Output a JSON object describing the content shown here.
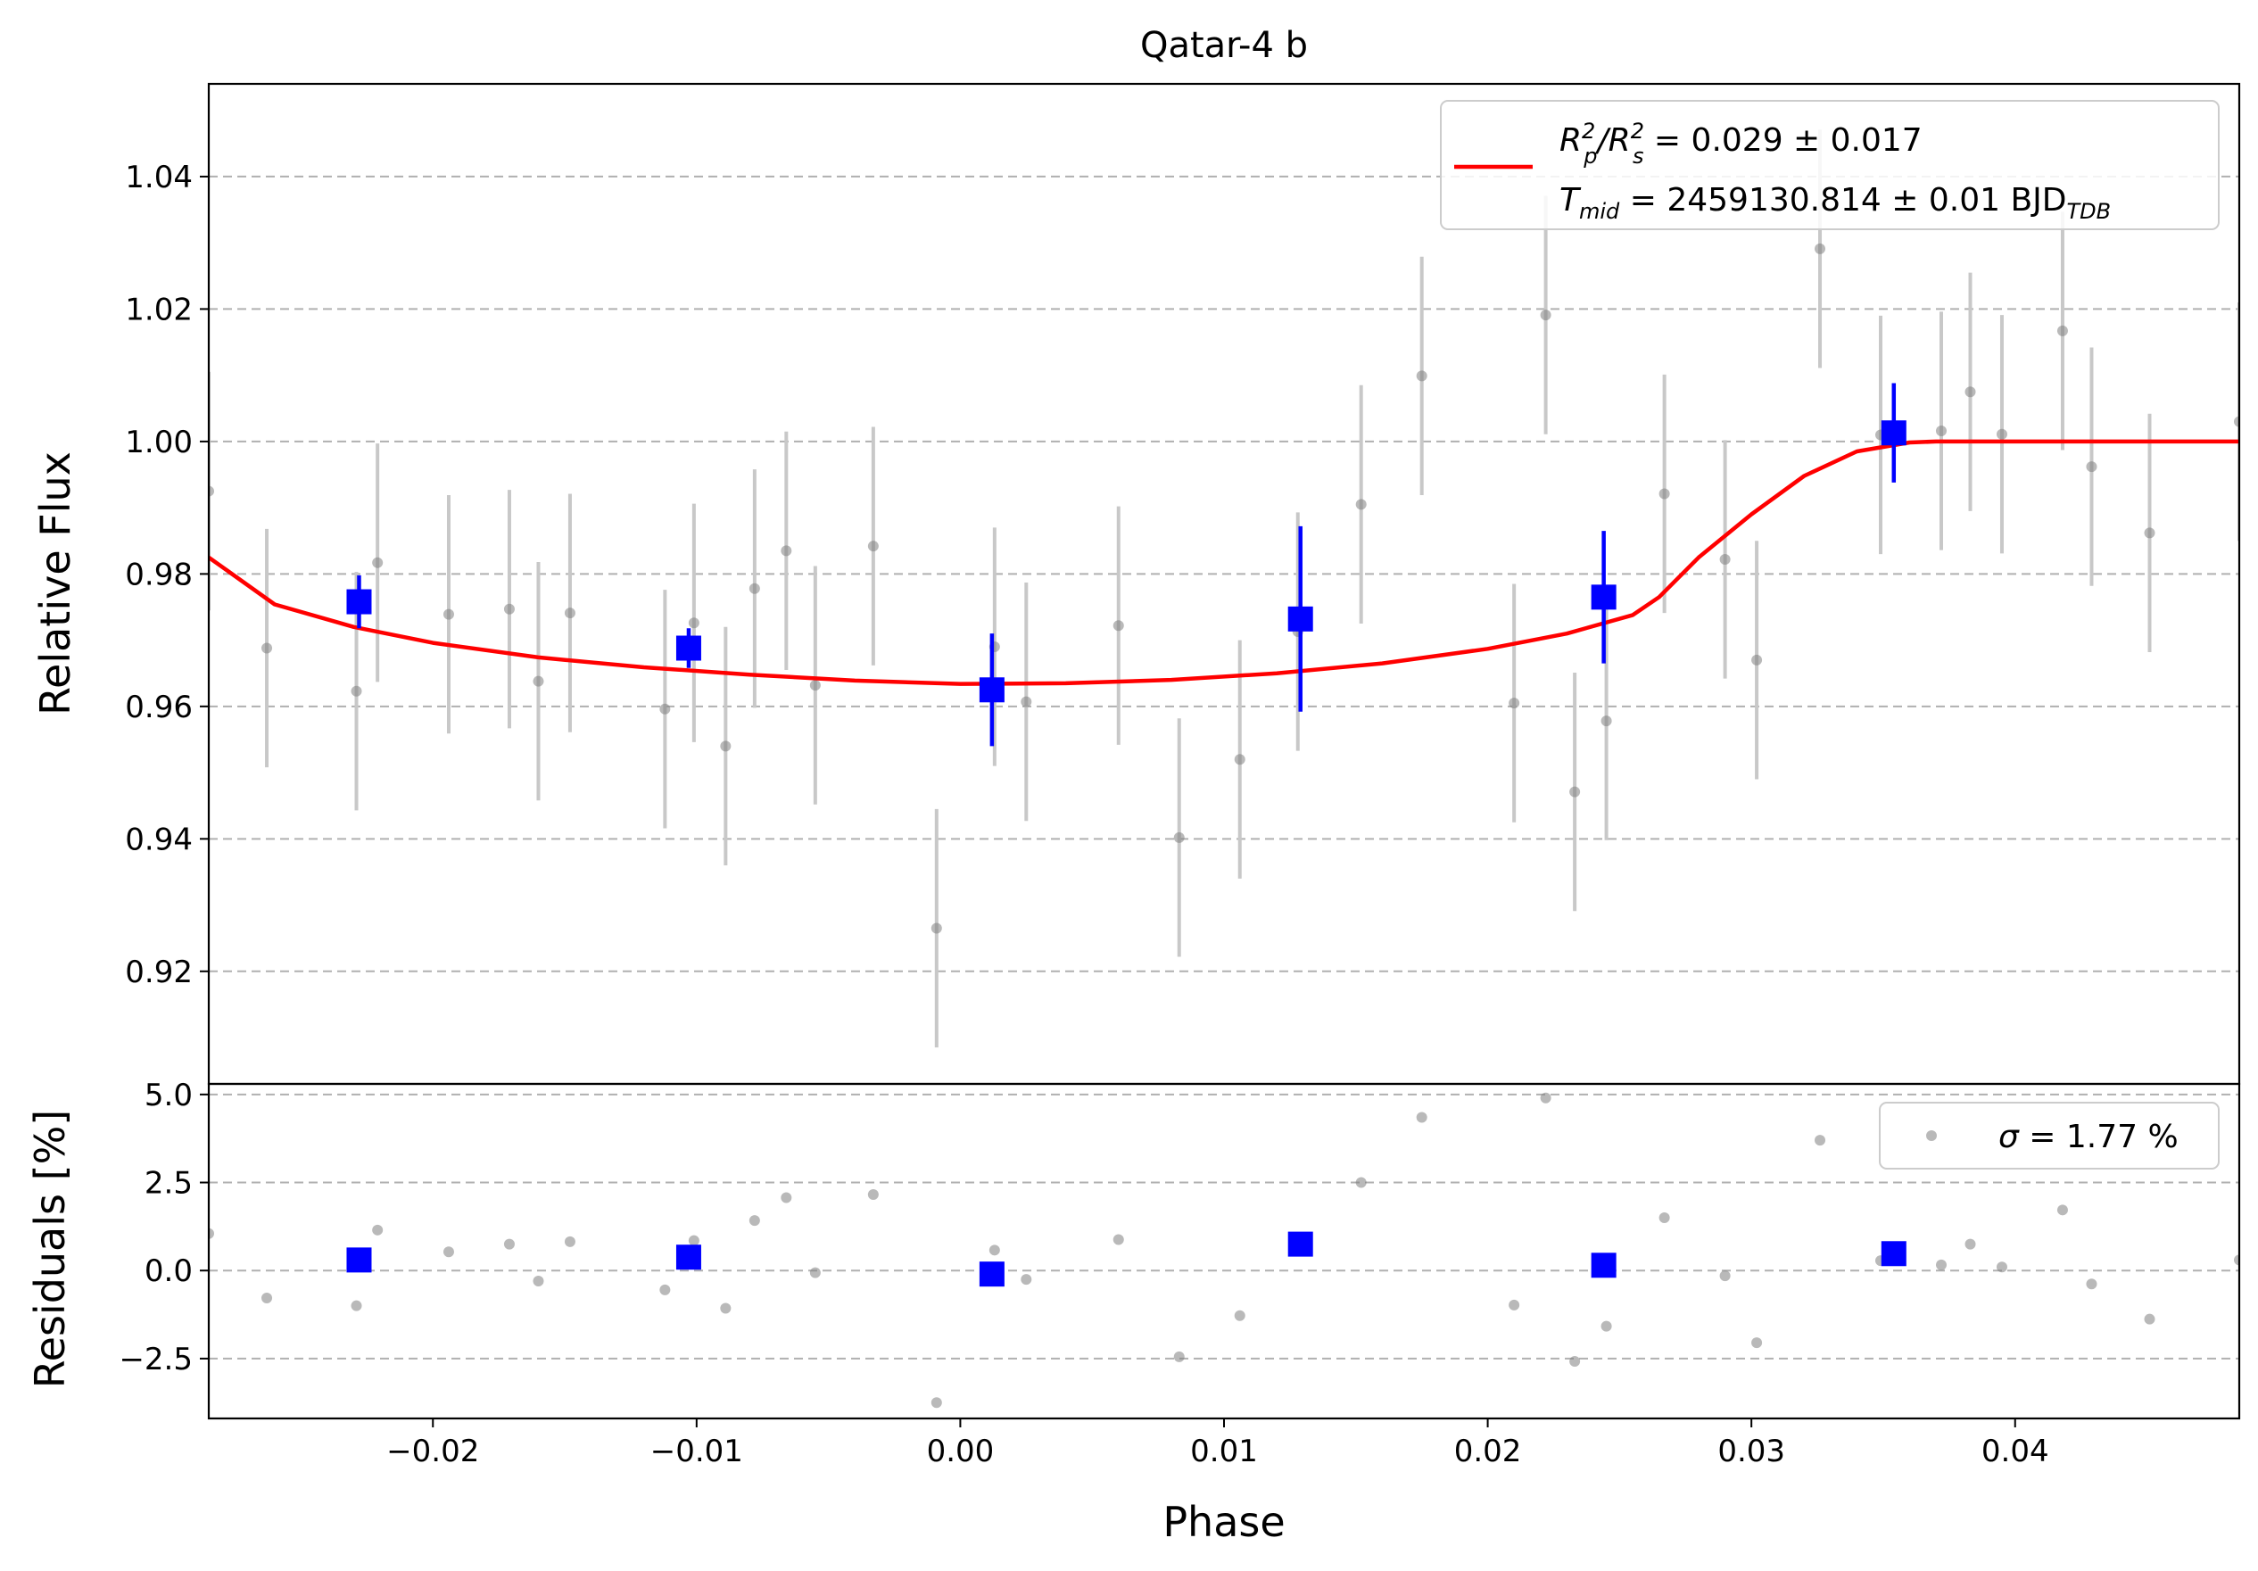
{
  "chart_data": [
    {
      "type": "scatter",
      "title": "Qatar-4 b",
      "xlabel": "",
      "ylabel": "Relative Flux",
      "xlim": [
        -0.0285,
        0.0485
      ],
      "ylim": [
        0.903,
        1.054
      ],
      "grid": "horizontal dashed",
      "yticks": [
        0.92,
        0.94,
        0.96,
        0.98,
        1.0,
        1.02,
        1.04
      ],
      "ytick_labels": [
        "0.92",
        "0.94",
        "0.96",
        "0.98",
        "1.00",
        "1.02",
        "1.04"
      ],
      "legend": {
        "placement": "top-right",
        "line1_math": "R",
        "line1_p": "p",
        "line1_exp": "2",
        "line1_mid": "/R",
        "line1_s": "s",
        "line1_rest": " = 0.029 ± 0.017",
        "line2_T": "T",
        "line2_mid_sub": "mid",
        "line2_rest": " = 2459130.814 ± 0.01 BJD",
        "line2_sub": "TDB"
      },
      "series": [
        {
          "kind": "raw",
          "color": "#808080",
          "errcolor": "#c8c8c8",
          "points": [
            [
              -0.0285,
              0.9925,
              0.018
            ],
            [
              -0.0263,
              0.9688,
              0.018
            ],
            [
              -0.0229,
              0.9623,
              0.018
            ],
            [
              -0.0221,
              0.9817,
              0.018
            ],
            [
              -0.0194,
              0.9739,
              0.018
            ],
            [
              -0.0171,
              0.9747,
              0.018
            ],
            [
              -0.016,
              0.9638,
              0.018
            ],
            [
              -0.0148,
              0.9741,
              0.018
            ],
            [
              -0.0112,
              0.9596,
              0.018
            ],
            [
              -0.0101,
              0.9726,
              0.018
            ],
            [
              -0.0089,
              0.954,
              0.018
            ],
            [
              -0.0078,
              0.9778,
              0.018
            ],
            [
              -0.0066,
              0.9835,
              0.018
            ],
            [
              -0.0055,
              0.9632,
              0.018
            ],
            [
              -0.0033,
              0.9842,
              0.018
            ],
            [
              -0.0009,
              0.9265,
              0.018
            ],
            [
              0.0013,
              0.969,
              0.018
            ],
            [
              0.0025,
              0.9607,
              0.018
            ],
            [
              0.006,
              0.9722,
              0.018
            ],
            [
              0.0083,
              0.9402,
              0.018
            ],
            [
              0.0106,
              0.952,
              0.018
            ],
            [
              0.0128,
              0.9713,
              0.018
            ],
            [
              0.0152,
              0.9905,
              0.018
            ],
            [
              0.0175,
              1.0099,
              0.018
            ],
            [
              0.021,
              0.9605,
              0.018
            ],
            [
              0.0222,
              1.0191,
              0.018
            ],
            [
              0.0233,
              0.9471,
              0.018
            ],
            [
              0.0245,
              0.9578,
              0.018
            ],
            [
              0.0267,
              0.9921,
              0.018
            ],
            [
              0.029,
              0.9822,
              0.018
            ],
            [
              0.0302,
              0.967,
              0.018
            ],
            [
              0.0326,
              1.0291,
              0.018
            ],
            [
              0.0349,
              1.001,
              0.018
            ],
            [
              0.0372,
              1.0016,
              0.018
            ],
            [
              0.0383,
              1.0075,
              0.018
            ],
            [
              0.0395,
              1.0011,
              0.018
            ],
            [
              0.0418,
              1.0167,
              0.018
            ],
            [
              0.0429,
              0.9962,
              0.018
            ],
            [
              0.0451,
              0.9862,
              0.018
            ],
            [
              0.0485,
              1.003,
              0.018
            ]
          ]
        },
        {
          "kind": "binned",
          "color": "#0000ff",
          "points": [
            [
              -0.0228,
              0.9758,
              0.004
            ],
            [
              -0.0103,
              0.9688,
              0.003
            ],
            [
              0.0012,
              0.9625,
              0.0085
            ],
            [
              0.0129,
              0.9732,
              0.014
            ],
            [
              0.0244,
              0.9765,
              0.01
            ],
            [
              0.0354,
              1.0013,
              0.0075
            ]
          ]
        },
        {
          "kind": "model",
          "color": "#ff0000",
          "points": [
            [
              -0.0285,
              0.9825
            ],
            [
              -0.026,
              0.9754
            ],
            [
              -0.023,
              0.972
            ],
            [
              -0.02,
              0.9696
            ],
            [
              -0.016,
              0.9674
            ],
            [
              -0.012,
              0.9659
            ],
            [
              -0.008,
              0.9648
            ],
            [
              -0.004,
              0.9639
            ],
            [
              0.0,
              0.9634
            ],
            [
              0.004,
              0.9635
            ],
            [
              0.008,
              0.964
            ],
            [
              0.012,
              0.965
            ],
            [
              0.016,
              0.9665
            ],
            [
              0.02,
              0.9687
            ],
            [
              0.023,
              0.971
            ],
            [
              0.0255,
              0.9738
            ],
            [
              0.0265,
              0.9765
            ],
            [
              0.028,
              0.9825
            ],
            [
              0.03,
              0.989
            ],
            [
              0.032,
              0.9948
            ],
            [
              0.034,
              0.9985
            ],
            [
              0.036,
              0.99985
            ],
            [
              0.037,
              1.0
            ],
            [
              0.0485,
              1.0
            ]
          ]
        }
      ]
    },
    {
      "type": "scatter",
      "title": "",
      "xlabel": "Phase",
      "ylabel": "Residuals [%]",
      "xlim": [
        -0.0285,
        0.0485
      ],
      "ylim": [
        -4.2,
        5.3
      ],
      "grid": "horizontal dashed",
      "xticks": [
        -0.02,
        -0.01,
        0.0,
        0.01,
        0.02,
        0.03,
        0.04
      ],
      "xtick_labels": [
        "−0.02",
        "−0.01",
        "0.00",
        "0.01",
        "0.02",
        "0.03",
        "0.04"
      ],
      "yticks": [
        -2.5,
        0.0,
        2.5,
        5.0
      ],
      "ytick_labels": [
        "−2.5",
        "0.0",
        "2.5",
        "5.0"
      ],
      "legend": {
        "placement": "top-right",
        "sigma": "σ",
        "text": " = 1.77 %"
      },
      "series": [
        {
          "kind": "raw",
          "color": "#808080",
          "points": [
            [
              -0.0285,
              1.05
            ],
            [
              -0.0263,
              -0.78
            ],
            [
              -0.0229,
              -1.0
            ],
            [
              -0.0221,
              1.15
            ],
            [
              -0.0194,
              0.53
            ],
            [
              -0.0171,
              0.75
            ],
            [
              -0.016,
              -0.3
            ],
            [
              -0.0148,
              0.82
            ],
            [
              -0.0112,
              -0.55
            ],
            [
              -0.0101,
              0.85
            ],
            [
              -0.0089,
              -1.07
            ],
            [
              -0.0078,
              1.42
            ],
            [
              -0.0066,
              2.07
            ],
            [
              -0.0055,
              -0.06
            ],
            [
              -0.0033,
              2.16
            ],
            [
              -0.0009,
              -3.75
            ],
            [
              0.0013,
              0.58
            ],
            [
              0.0025,
              -0.25
            ],
            [
              0.006,
              0.88
            ],
            [
              0.0083,
              -2.45
            ],
            [
              0.0106,
              -1.28
            ],
            [
              0.0128,
              0.6
            ],
            [
              0.0152,
              2.5
            ],
            [
              0.0175,
              4.35
            ],
            [
              0.021,
              -0.98
            ],
            [
              0.0222,
              4.9
            ],
            [
              0.0233,
              -2.58
            ],
            [
              0.0245,
              -1.58
            ],
            [
              0.0267,
              1.5
            ],
            [
              0.029,
              -0.15
            ],
            [
              0.0302,
              -2.05
            ],
            [
              0.0326,
              3.7
            ],
            [
              0.0349,
              0.28
            ],
            [
              0.0372,
              0.16
            ],
            [
              0.0383,
              0.75
            ],
            [
              0.0395,
              0.1
            ],
            [
              0.0418,
              1.72
            ],
            [
              0.0429,
              -0.38
            ],
            [
              0.0451,
              -1.38
            ],
            [
              0.0485,
              0.3
            ]
          ]
        },
        {
          "kind": "binned",
          "color": "#0000ff",
          "points": [
            [
              -0.0228,
              0.3
            ],
            [
              -0.0103,
              0.38
            ],
            [
              0.0012,
              -0.1
            ],
            [
              0.0129,
              0.75
            ],
            [
              0.0244,
              0.15
            ],
            [
              0.0354,
              0.48
            ]
          ]
        }
      ]
    }
  ]
}
